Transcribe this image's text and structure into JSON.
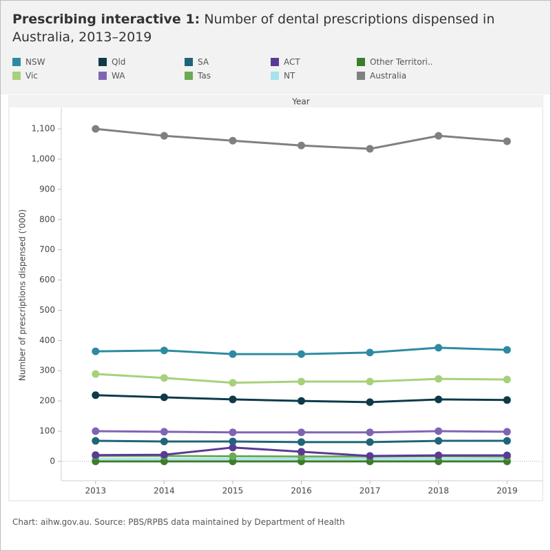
{
  "title": "Prescribing interactive 1:",
  "subtitle": "Number of dental prescriptions dispensed in Australia, 2013–2019",
  "footer": "Chart: aihw.gov.au. Source: PBS/RPBS data maintained by Department of Health",
  "chart_data": {
    "type": "line",
    "column_header": "Year",
    "y_label": "Number of prescriptions dispensed ('000)",
    "x": [
      2013,
      2014,
      2015,
      2016,
      2017,
      2018,
      2019
    ],
    "xlim": [
      2012.5,
      2019.5
    ],
    "xticks": [
      2013,
      2014,
      2015,
      2016,
      2017,
      2018,
      2019
    ],
    "ylim": [
      -64,
      1164
    ],
    "yticks": [
      0,
      100,
      200,
      300,
      400,
      500,
      600,
      700,
      800,
      900,
      {
        "value": 1000,
        "label": "1,000"
      },
      {
        "value": 1100,
        "label": "1,100"
      }
    ],
    "zero_line": true,
    "series": [
      {
        "name": "NSW",
        "color": "#2e8aa3",
        "values": [
          364,
          367,
          355,
          355,
          360,
          376,
          369
        ]
      },
      {
        "name": "Vic",
        "color": "#a6d17a",
        "values": [
          289,
          276,
          260,
          264,
          264,
          273,
          271
        ]
      },
      {
        "name": "Qld",
        "color": "#0e3a4a",
        "values": [
          219,
          212,
          205,
          200,
          196,
          205,
          203
        ]
      },
      {
        "name": "WA",
        "color": "#8064b4",
        "values": [
          100,
          98,
          96,
          96,
          96,
          100,
          98
        ]
      },
      {
        "name": "SA",
        "color": "#1f6478",
        "values": [
          68,
          66,
          66,
          64,
          64,
          68,
          68
        ]
      },
      {
        "name": "Tas",
        "color": "#6aaa55",
        "values": [
          18,
          18,
          17,
          16,
          16,
          17,
          16
        ]
      },
      {
        "name": "ACT",
        "color": "#5a3a96",
        "values": [
          21,
          22,
          46,
          32,
          18,
          20,
          20
        ]
      },
      {
        "name": "NT",
        "color": "#a8e2ee",
        "values": [
          8,
          8,
          8,
          8,
          8,
          8,
          8
        ]
      },
      {
        "name": "Other Territori..",
        "color": "#3c7d2a",
        "values": [
          0,
          0,
          0,
          0,
          0,
          0,
          0
        ]
      },
      {
        "name": "Australia",
        "color": "#808080",
        "values": [
          1100,
          1077,
          1061,
          1045,
          1034,
          1077,
          1059
        ]
      }
    ]
  }
}
